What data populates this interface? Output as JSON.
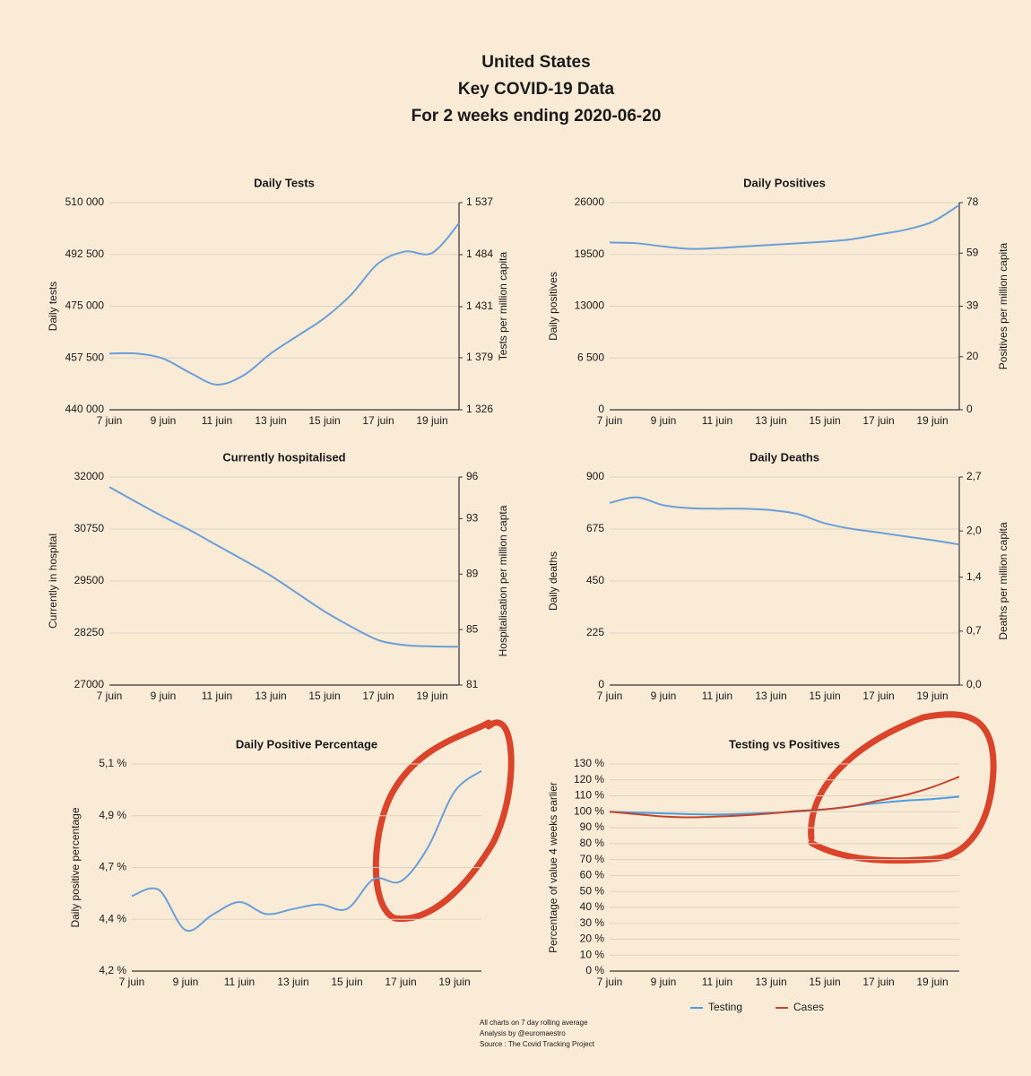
{
  "title": [
    "United States",
    "Key COVID-19 Data",
    "For 2 weeks ending 2020-06-20"
  ],
  "notes": [
    "All charts on 7 day rolling average",
    "Analysis by @euromaestro",
    "Source : The Covid Tracking Project"
  ],
  "chart_data": [
    {
      "type": "line",
      "title": "Daily Tests",
      "y_label": "Daily tests",
      "y2_label": "Tests per million capita",
      "categories": [
        "7 juin",
        null,
        "9 juin",
        null,
        "11 juin",
        null,
        "13 juin",
        null,
        "15 juin",
        null,
        "17 juin",
        null,
        "19 juin",
        null
      ],
      "series": [
        {
          "name": "Daily tests",
          "color": "#6a9fd8",
          "values": [
            459000,
            459000,
            457300,
            452500,
            448500,
            451700,
            459000,
            465000,
            471000,
            479000,
            489500,
            493500,
            493000,
            503000
          ]
        }
      ],
      "ylim": [
        440000,
        510000
      ],
      "yticks": [
        {
          "value": 440000,
          "label": "440 000"
        },
        {
          "value": 457500,
          "label": "457 500"
        },
        {
          "value": 475000,
          "label": "475 000"
        },
        {
          "value": 492500,
          "label": "492 500"
        },
        {
          "value": 510000,
          "label": "510 000"
        }
      ],
      "y2lim": [
        1326,
        1537
      ],
      "y2ticks": [
        {
          "value": 1326,
          "label": "1 326"
        },
        {
          "value": 1379,
          "label": "1 379"
        },
        {
          "value": 1431,
          "label": "1 431"
        },
        {
          "value": 1484,
          "label": "1 484"
        },
        {
          "value": 1537,
          "label": "1 537"
        }
      ],
      "grid": true
    },
    {
      "type": "line",
      "title": "Daily Positives",
      "y_label": "Daily positives",
      "y2_label": "Positives per million capita",
      "categories": [
        "7 juin",
        null,
        "9 juin",
        null,
        "11 juin",
        null,
        "13 juin",
        null,
        "15 juin",
        null,
        "17 juin",
        null,
        "19 juin",
        null
      ],
      "series": [
        {
          "name": "Daily positives",
          "color": "#6a9fd8",
          "values": [
            21000,
            20900,
            20500,
            20200,
            20300,
            20500,
            20700,
            20900,
            21100,
            21400,
            22000,
            22600,
            23600,
            25700
          ]
        }
      ],
      "ylim": [
        0,
        26000
      ],
      "yticks": [
        0,
        {
          "value": 6500,
          "label": "6 500"
        },
        13000,
        19500,
        26000
      ],
      "y2lim": [
        0,
        78
      ],
      "y2ticks": [
        0,
        20,
        39,
        59,
        78
      ],
      "grid": true
    },
    {
      "type": "line",
      "title": "Currently hospitalised",
      "y_label": "Currently in hospital",
      "y2_label": "Hospitalisation per million capta",
      "categories": [
        "7 juin",
        null,
        "9 juin",
        null,
        "11 juin",
        null,
        "13 juin",
        null,
        "15 juin",
        null,
        "17 juin",
        null,
        "19 juin",
        null
      ],
      "series": [
        {
          "name": "Currently in hospital",
          "color": "#6a9fd8",
          "values": [
            31760,
            31400,
            31050,
            30720,
            30360,
            30000,
            29630,
            29200,
            28770,
            28400,
            28080,
            27960,
            27930,
            27920
          ]
        }
      ],
      "ylim": [
        27000,
        32000
      ],
      "yticks": [
        27000,
        28250,
        29500,
        30750,
        32000
      ],
      "y2lim": [
        81,
        96
      ],
      "y2ticks": [
        81,
        85,
        89,
        93,
        96
      ],
      "grid": true
    },
    {
      "type": "line",
      "title": "Daily Deaths",
      "y_label": "Daily deaths",
      "y2_label": "Deaths per million capita",
      "categories": [
        "7 juin",
        null,
        "9 juin",
        null,
        "11 juin",
        null,
        "13 juin",
        null,
        "15 juin",
        null,
        "17 juin",
        null,
        "19 juin",
        null
      ],
      "series": [
        {
          "name": "Daily deaths",
          "color": "#6a9fd8",
          "values": [
            788,
            812,
            778,
            765,
            763,
            763,
            757,
            740,
            700,
            676,
            660,
            643,
            627,
            608
          ]
        }
      ],
      "ylim": [
        0,
        900
      ],
      "yticks": [
        0,
        225,
        450,
        675,
        900
      ],
      "y2lim": [
        0,
        2.7
      ],
      "y2ticks": [
        {
          "value": 0,
          "label": "0,0"
        },
        {
          "value": 0.7,
          "label": "0,7"
        },
        {
          "value": 1.4,
          "label": "1,4"
        },
        {
          "value": 2.0,
          "label": "2,0"
        },
        {
          "value": 2.7,
          "label": "2,7"
        }
      ],
      "grid": true
    },
    {
      "type": "line",
      "title": "Daily Positive Percentage",
      "y_label": "Daily positive percentage",
      "categories": [
        "7 juin",
        null,
        "9 juin",
        null,
        "11 juin",
        null,
        "13 juin",
        null,
        "15 juin",
        null,
        "17 juin",
        null,
        "19 juin",
        null
      ],
      "series": [
        {
          "name": "Daily positive percentage",
          "color": "#6a9fd8",
          "values": [
            4.526,
            4.553,
            4.378,
            4.445,
            4.5,
            4.448,
            4.47,
            4.49,
            4.47,
            4.6,
            4.59,
            4.735,
            4.98,
            5.07
          ]
        }
      ],
      "ylim": [
        4.2,
        5.1
      ],
      "yticks": [
        {
          "value": 4.2,
          "label": "4,2 %"
        },
        {
          "value": 4.425,
          "label": "4,4 %"
        },
        {
          "value": 4.65,
          "label": "4,7 %"
        },
        {
          "value": 4.875,
          "label": "4,9 %"
        },
        {
          "value": 5.1,
          "label": "5,1 %"
        }
      ],
      "grid": true
    },
    {
      "type": "line",
      "title": "Testing vs Positives",
      "y_label": "Percentage of value 4 weeks earlier",
      "categories": [
        "7 juin",
        null,
        "9 juin",
        null,
        "11 juin",
        null,
        "13 juin",
        null,
        "15 juin",
        null,
        "17 juin",
        null,
        "19 juin",
        null
      ],
      "series": [
        {
          "name": "Testing",
          "color": "#4a9fe0",
          "values": [
            100,
            99.5,
            99,
            98.5,
            98.3,
            98.7,
            99.3,
            100.2,
            101.5,
            103.5,
            105.5,
            107,
            108,
            109.5
          ]
        },
        {
          "name": "Cases",
          "color": "#c4452b",
          "values": [
            100,
            98.5,
            97,
            96.5,
            97,
            97.8,
            99,
            100.5,
            101.5,
            103.5,
            107,
            110.5,
            115.5,
            122
          ]
        }
      ],
      "ylim": [
        0,
        130
      ],
      "yticks": [
        {
          "value": 0,
          "label": "0 %"
        },
        {
          "value": 10,
          "label": "10 %"
        },
        {
          "value": 20,
          "label": "20 %"
        },
        {
          "value": 30,
          "label": "30 %"
        },
        {
          "value": 40,
          "label": "40 %"
        },
        {
          "value": 50,
          "label": "50 %"
        },
        {
          "value": 60,
          "label": "60 %"
        },
        {
          "value": 70,
          "label": "70 %"
        },
        {
          "value": 80,
          "label": "80 %"
        },
        {
          "value": 90,
          "label": "90 %"
        },
        {
          "value": 100,
          "label": "100 %"
        },
        {
          "value": 110,
          "label": "110 %"
        },
        {
          "value": 120,
          "label": "120 %"
        },
        {
          "value": 130,
          "label": "130 %"
        }
      ],
      "grid": true,
      "legend": "bottom"
    }
  ]
}
